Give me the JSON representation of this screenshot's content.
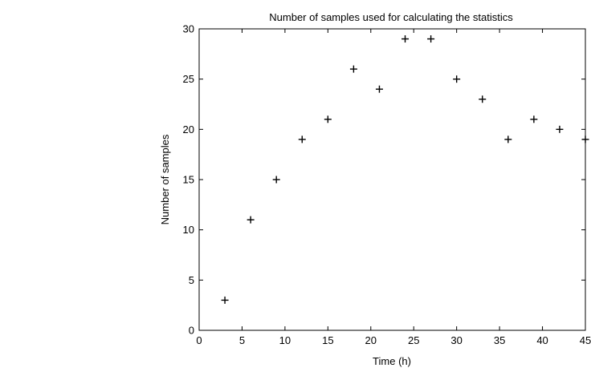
{
  "chart_data": {
    "type": "scatter",
    "title": "Number of samples used for calculating the statistics",
    "xlabel": "Time (h)",
    "ylabel": "Number of samples",
    "xlim": [
      0,
      45
    ],
    "ylim": [
      0,
      30
    ],
    "xticks": [
      0,
      5,
      10,
      15,
      20,
      25,
      30,
      35,
      40,
      45
    ],
    "yticks": [
      0,
      5,
      10,
      15,
      20,
      25,
      30
    ],
    "grid": false,
    "marker": "+",
    "marker_color": "#000000",
    "series": [
      {
        "x": [
          3,
          6,
          9,
          12,
          15,
          18,
          21,
          24,
          27,
          30,
          33,
          36,
          39,
          42,
          45
        ],
        "y": [
          3,
          11,
          15,
          19,
          21,
          26,
          24,
          29,
          29,
          25,
          23,
          19,
          21,
          20,
          19
        ]
      }
    ]
  }
}
